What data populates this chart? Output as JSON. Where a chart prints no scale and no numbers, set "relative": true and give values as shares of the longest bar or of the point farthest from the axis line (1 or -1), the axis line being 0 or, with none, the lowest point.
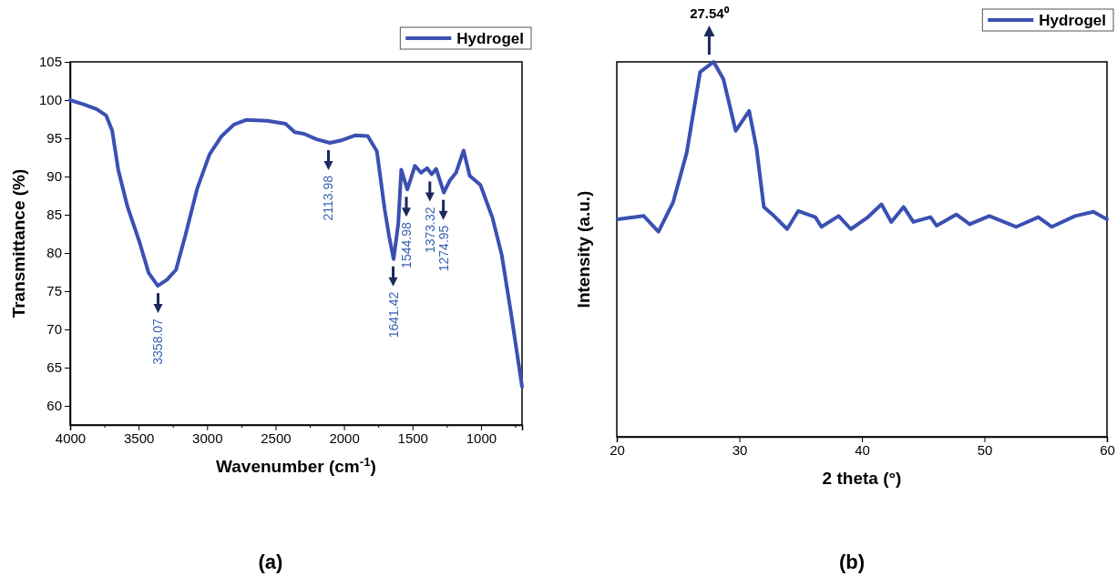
{
  "chart_data": [
    {
      "type": "line",
      "xlabel": "Wavenumber (cm$^{-1}$)",
      "ylabel": "Transmittance (%)",
      "xlim": [
        4000,
        700
      ],
      "ylim": [
        57.5,
        105
      ],
      "xticks": [
        4000,
        {
          "value": 3750,
          "label": null
        },
        3500,
        {
          "value": 3250,
          "label": null
        },
        3000,
        {
          "value": 2750,
          "label": null
        },
        2500,
        {
          "value": 2250,
          "label": null
        },
        2000,
        {
          "value": 1750,
          "label": null
        },
        1500,
        {
          "value": 1250,
          "label": null
        },
        1000,
        {
          "value": 750,
          "label": null
        }
      ],
      "yticks": [
        60,
        65,
        70,
        75,
        80,
        85,
        90,
        95,
        100,
        105
      ],
      "legend": "top right",
      "series": [
        {
          "name": "Hydrogel",
          "color": "#3b50b2",
          "x": [
            4000,
            3893,
            3804,
            3738,
            3693,
            3649,
            3582,
            3493,
            3427,
            3360,
            3293,
            3227,
            3160,
            3071,
            2982,
            2893,
            2804,
            2716,
            2560,
            2427,
            2360,
            2293,
            2204,
            2104,
            2027,
            1916,
            1827,
            1760,
            1704,
            1671,
            1638,
            1604,
            1582,
            1538,
            1482,
            1438,
            1393,
            1360,
            1327,
            1271,
            1227,
            1182,
            1127,
            1082,
            1004,
            916,
            849,
            782,
            700
          ],
          "values": [
            100,
            99.4,
            98.8,
            98.0,
            96.0,
            90.9,
            86.1,
            81.4,
            77.4,
            75.7,
            76.5,
            77.8,
            82.2,
            88.5,
            92.9,
            95.3,
            96.8,
            97.4,
            97.3,
            96.9,
            95.8,
            95.6,
            94.9,
            94.4,
            94.7,
            95.4,
            95.3,
            93.3,
            85.8,
            82.2,
            79.2,
            83.8,
            90.9,
            88.3,
            91.4,
            90.5,
            91.1,
            90.3,
            91.0,
            87.9,
            89.5,
            90.5,
            93.4,
            90.1,
            88.9,
            84.6,
            79.8,
            72.3,
            62.5
          ]
        }
      ],
      "annotations": [
        {
          "text": "3358.07",
          "x": 3358.07,
          "y": 75.7
        },
        {
          "text": "2113.98",
          "x": 2113.98,
          "y": 94.4
        },
        {
          "text": "1641.42",
          "x": 1641.42,
          "y": 79.2
        },
        {
          "text": "1544.98",
          "x": 1544.98,
          "y": 88.3
        },
        {
          "text": "1373.32",
          "x": 1373.32,
          "y": 90.3
        },
        {
          "text": "1274.95",
          "x": 1274.95,
          "y": 87.9
        },
        "(a)"
      ]
    },
    {
      "type": "line",
      "xlabel": "2 theta (°)",
      "ylabel": "Intensity (a.u.)",
      "xlim": [
        20,
        60
      ],
      "xticks": [
        20,
        30,
        40,
        50,
        60
      ],
      "relative": true,
      "legend": "top right",
      "series": [
        {
          "name": "Hydrogel",
          "color": "#3b50b2",
          "x": [
            20.07,
            22.2,
            23.4,
            24.6,
            25.7,
            26.8,
            27.9,
            28.7,
            29.7,
            30.8,
            31.4,
            32.0,
            32.7,
            33.9,
            34.8,
            36.2,
            36.7,
            38.1,
            39.1,
            40.5,
            41.6,
            42.4,
            43.4,
            44.2,
            45.6,
            46.1,
            47.7,
            48.8,
            50.4,
            52.6,
            54.4,
            55.5,
            57.4,
            58.9,
            60.0
          ],
          "values": [
            0.58,
            0.589,
            0.547,
            0.626,
            0.757,
            0.973,
            1.0,
            0.954,
            0.816,
            0.869,
            0.77,
            0.613,
            0.593,
            0.554,
            0.602,
            0.586,
            0.56,
            0.589,
            0.554,
            0.586,
            0.62,
            0.573,
            0.613,
            0.573,
            0.586,
            0.563,
            0.593,
            0.567,
            0.589,
            0.56,
            0.586,
            0.56,
            0.589,
            0.6,
            0.58
          ]
        }
      ],
      "annotations": [
        {
          "text": "27.54⁰",
          "x": 27.54,
          "y": 1.0
        },
        "(b)"
      ]
    }
  ]
}
